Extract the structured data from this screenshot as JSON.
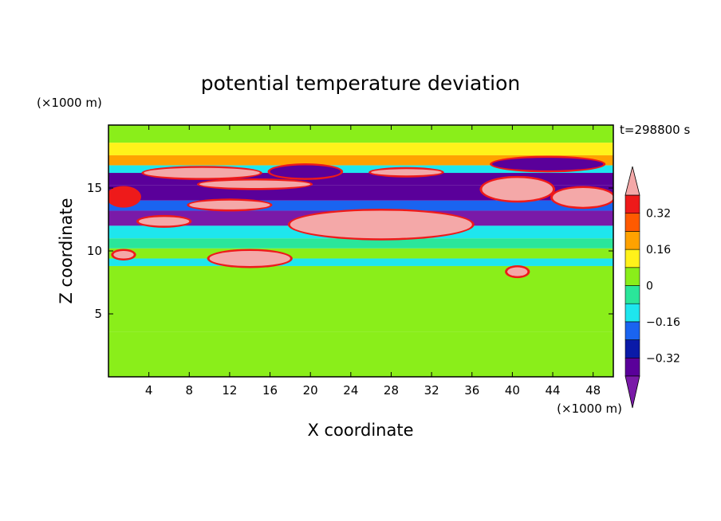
{
  "chart_data": {
    "type": "heatmap",
    "title": "potential temperature deviation",
    "xlabel": "X coordinate",
    "ylabel": "Z coordinate",
    "x_unit": "(×1000 m)",
    "y_unit": "(×1000 m)",
    "time_label": "t=298800 s",
    "xlim": [
      0,
      50
    ],
    "ylim": [
      0,
      20
    ],
    "x_ticks": [
      "4",
      "8",
      "12",
      "16",
      "20",
      "24",
      "28",
      "32",
      "36",
      "40",
      "44",
      "48"
    ],
    "y_ticks": [
      "5",
      "10",
      "15"
    ],
    "x_tick_values": [
      4,
      8,
      12,
      16,
      20,
      24,
      28,
      32,
      36,
      40,
      44,
      48
    ],
    "y_tick_values": [
      5,
      10,
      15
    ],
    "colorbar": {
      "levels": [
        -0.4,
        -0.32,
        -0.24,
        -0.16,
        -0.08,
        0,
        0.08,
        0.16,
        0.24,
        0.32,
        0.4
      ],
      "labels": [
        "0.32",
        "0.16",
        "0",
        "−0.16",
        "−0.32"
      ],
      "label_values": [
        0.32,
        0.16,
        0,
        -0.16,
        -0.32
      ],
      "colors": [
        "#7a1aa8",
        "#5a009a",
        "#0a1aa8",
        "#1a64f0",
        "#1ee6ee",
        "#2ae69a",
        "#8aee1a",
        "#fff21a",
        "#ffa200",
        "#ff5a00",
        "#ee1a1a",
        "#f4a8a8"
      ],
      "extend": "both"
    },
    "bands": [
      {
        "z": [
          18.6,
          20.0
        ],
        "value": 0.05
      },
      {
        "z": [
          17.6,
          18.6
        ],
        "value": 0.12
      },
      {
        "z": [
          16.8,
          17.6
        ],
        "value": 0.18
      },
      {
        "z": [
          16.2,
          16.8
        ],
        "value": -0.1
      },
      {
        "z": [
          15.2,
          16.2
        ],
        "value": -0.38
      },
      {
        "z": [
          14.0,
          15.2
        ],
        "value": -0.36
      },
      {
        "z": [
          13.2,
          14.0
        ],
        "value": -0.2
      },
      {
        "z": [
          12.0,
          13.2
        ],
        "value": -0.42
      },
      {
        "z": [
          11.0,
          12.0
        ],
        "value": -0.1
      },
      {
        "z": [
          10.2,
          11.0
        ],
        "value": -0.02
      },
      {
        "z": [
          9.4,
          10.2
        ],
        "value": 0.02
      },
      {
        "z": [
          8.8,
          9.4
        ],
        "value": -0.12
      },
      {
        "z": [
          3.6,
          8.8
        ],
        "value": 0.05
      },
      {
        "z": [
          0.0,
          3.6
        ],
        "value": 0.02
      }
    ],
    "features": [
      {
        "x": [
          3.5,
          15
        ],
        "z": [
          15.8,
          16.6
        ],
        "value": 0.42
      },
      {
        "x": [
          9,
          20
        ],
        "z": [
          15.0,
          15.6
        ],
        "value": 0.42
      },
      {
        "x": [
          3,
          8
        ],
        "z": [
          12.0,
          12.7
        ],
        "value": 0.42
      },
      {
        "x": [
          8,
          16
        ],
        "z": [
          13.3,
          14.0
        ],
        "value": 0.42
      },
      {
        "x": [
          18,
          36
        ],
        "z": [
          11.0,
          13.2
        ],
        "value": 0.42
      },
      {
        "x": [
          26,
          33
        ],
        "z": [
          16.0,
          16.5
        ],
        "value": 0.42
      },
      {
        "x": [
          37,
          44
        ],
        "z": [
          14.0,
          15.8
        ],
        "value": 0.42
      },
      {
        "x": [
          10,
          18
        ],
        "z": [
          8.8,
          10.0
        ],
        "value": 0.42
      },
      {
        "x": [
          38,
          49
        ],
        "z": [
          16.4,
          17.4
        ],
        "value": -0.38
      },
      {
        "x": [
          16,
          23
        ],
        "z": [
          15.8,
          16.8
        ],
        "value": -0.38
      },
      {
        "x": [
          0,
          3
        ],
        "z": [
          13.6,
          15.0
        ],
        "value": 0.32
      },
      {
        "x": [
          44,
          50
        ],
        "z": [
          13.5,
          15.0
        ],
        "value": 0.42
      },
      {
        "x": [
          0.5,
          2.5
        ],
        "z": [
          9.4,
          10.0
        ],
        "value": 0.42
      },
      {
        "x": [
          39.5,
          41.5
        ],
        "z": [
          8.0,
          8.7
        ],
        "value": 0.42
      }
    ],
    "grid": false
  }
}
